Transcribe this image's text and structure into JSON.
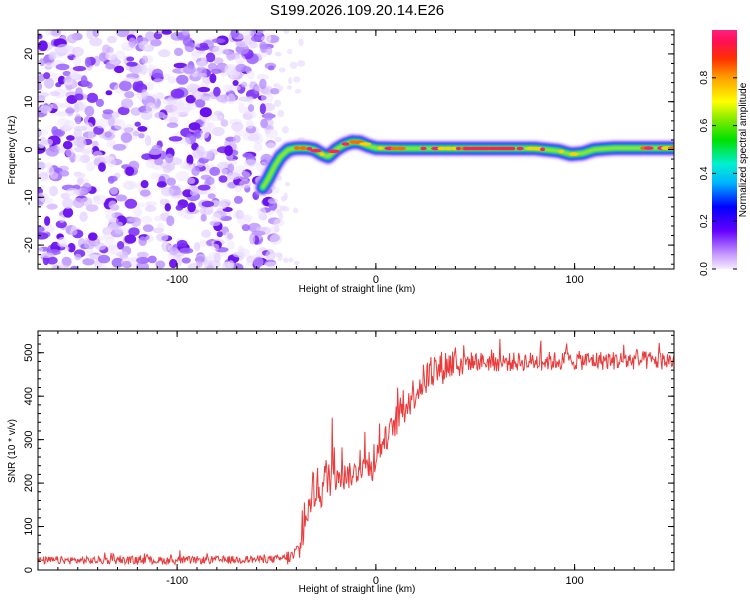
{
  "title": "S199.2026.109.20.14.E26",
  "chart_data": [
    {
      "type": "heatmap",
      "name": "spectrogram",
      "xlabel": "Height of straight line (km)",
      "ylabel": "Frequency (Hz)",
      "xlim": [
        -170,
        150
      ],
      "ylim": [
        -25,
        25
      ],
      "xticks": [
        -100,
        0,
        100
      ],
      "yticks": [
        -20,
        -10,
        0,
        10,
        20
      ],
      "noise_region_x": [
        -170,
        -50
      ],
      "ridge": {
        "x": [
          -57,
          -54,
          -51,
          -48,
          -44,
          -40,
          -35,
          -31,
          -27,
          -24,
          -20,
          -16,
          -12,
          -8,
          -4,
          0,
          10,
          20,
          40,
          60,
          80,
          92,
          98,
          104,
          110,
          120,
          130,
          140,
          150
        ],
        "y": [
          -8,
          -6,
          -3.5,
          -1.5,
          0,
          0.3,
          0.3,
          0,
          -1,
          -1.5,
          0,
          1,
          1.6,
          1.5,
          0.8,
          0.3,
          0.2,
          0.2,
          0.2,
          0.2,
          0.2,
          -0.3,
          -1,
          -0.8,
          0,
          0.3,
          0.3,
          0.3,
          0.3
        ]
      },
      "colorbar": {
        "label": "Normalized spectral amplitude",
        "ticks": [
          "0.0",
          "0.2",
          "0.4",
          "0.6",
          "0.8"
        ],
        "range": [
          0,
          1
        ]
      }
    },
    {
      "type": "line",
      "name": "snr",
      "xlabel": "Height of straight line (km)",
      "ylabel": "SNR (10 * v/v)",
      "xlim": [
        -170,
        150
      ],
      "ylim": [
        0,
        550
      ],
      "xticks": [
        -100,
        0,
        100
      ],
      "yticks": [
        0,
        100,
        200,
        300,
        400,
        500
      ],
      "color": "#e83b3b",
      "series": [
        {
          "name": "SNR",
          "x": [
            -170,
            -100,
            -50,
            -42,
            -38,
            -34,
            -30,
            -26,
            -22,
            -18,
            -14,
            -10,
            -6,
            -2,
            2,
            6,
            10,
            14,
            18,
            22,
            26,
            30,
            34,
            38,
            42,
            50,
            60,
            80,
            100,
            120,
            150
          ],
          "y": [
            22,
            22,
            25,
            30,
            50,
            140,
            180,
            200,
            230,
            245,
            215,
            225,
            245,
            230,
            280,
            310,
            340,
            370,
            400,
            425,
            445,
            458,
            468,
            475,
            480,
            480,
            478,
            480,
            482,
            482,
            482
          ]
        }
      ]
    }
  ]
}
